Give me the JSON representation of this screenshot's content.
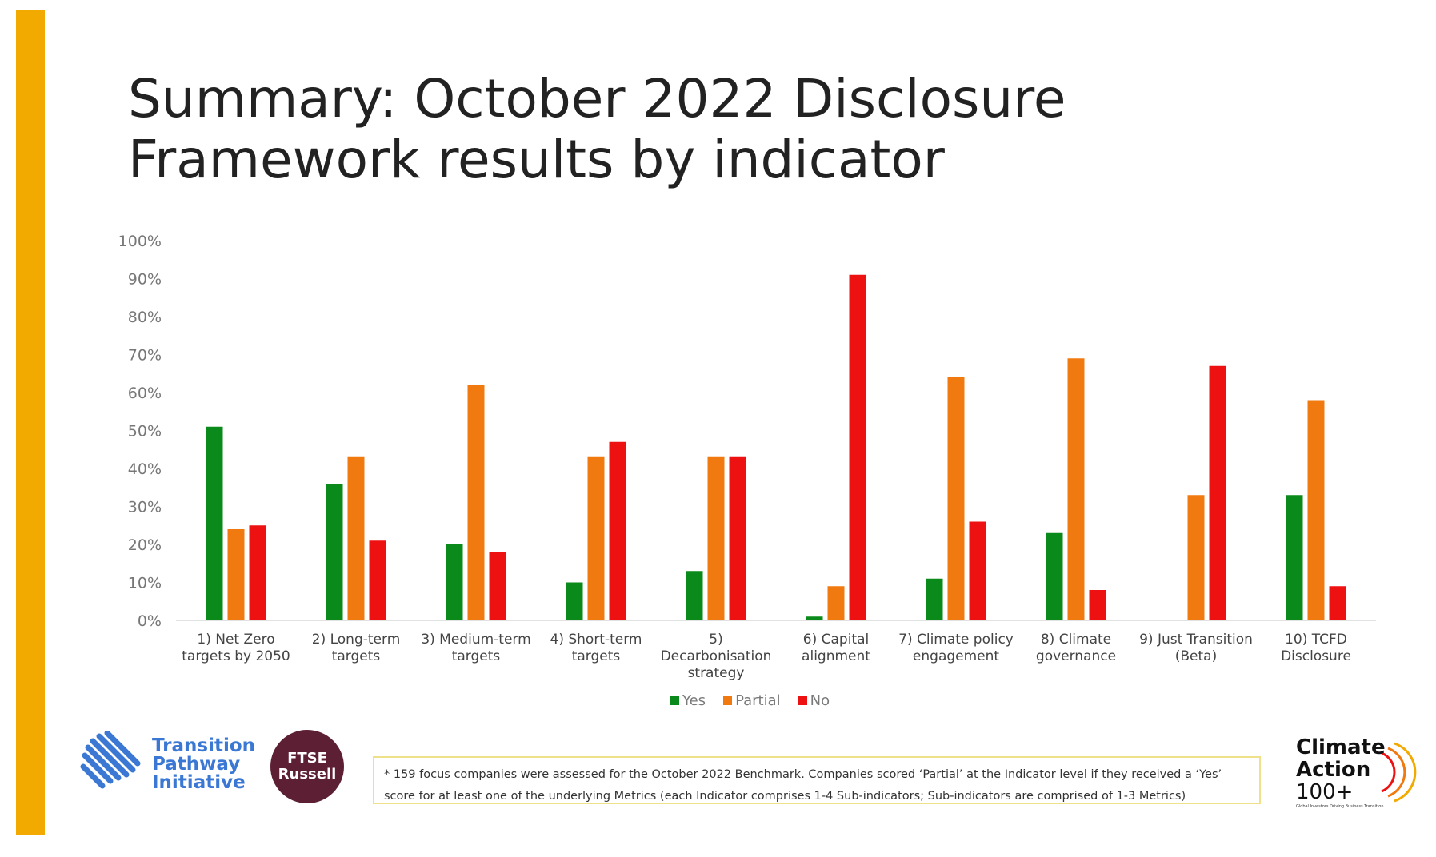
{
  "title_lines": [
    "Summary: October 2022 Disclosure",
    "Framework results by indicator"
  ],
  "colors": {
    "accent": "#F2A900",
    "yes": "#0A8A1A",
    "partial": "#F07A10",
    "no": "#EE1111",
    "axis_text": "#777777"
  },
  "chart_data": {
    "type": "bar",
    "categories": [
      [
        "1) Net Zero",
        "targets by 2050"
      ],
      [
        "2) Long-term",
        "targets"
      ],
      [
        "3) Medium-term",
        "targets"
      ],
      [
        "4) Short-term",
        "targets"
      ],
      [
        "5)",
        "Decarbonisation",
        "strategy"
      ],
      [
        "6) Capital",
        "alignment"
      ],
      [
        "7) Climate policy",
        "engagement"
      ],
      [
        "8) Climate",
        "governance"
      ],
      [
        "9) Just Transition",
        "(Beta)"
      ],
      [
        "10) TCFD",
        "Disclosure"
      ]
    ],
    "series": [
      {
        "name": "Yes",
        "color": "#0A8A1A",
        "values": [
          51,
          36,
          20,
          10,
          13,
          1,
          11,
          23,
          0,
          33
        ]
      },
      {
        "name": "Partial",
        "color": "#F07A10",
        "values": [
          24,
          43,
          62,
          43,
          43,
          9,
          64,
          69,
          33,
          58
        ]
      },
      {
        "name": "No",
        "color": "#EE1111",
        "values": [
          25,
          21,
          18,
          47,
          43,
          91,
          26,
          8,
          67,
          9
        ]
      }
    ],
    "yticks": [
      "0%",
      "10%",
      "20%",
      "30%",
      "40%",
      "50%",
      "60%",
      "70%",
      "80%",
      "90%",
      "100%"
    ],
    "ylim": [
      0,
      100
    ],
    "grid": false,
    "legend_position": "bottom"
  },
  "legend": {
    "yes": "Yes",
    "partial": "Partial",
    "no": "No"
  },
  "footnote_lines": [
    "* 159 focus companies were assessed for the October 2022 Benchmark. Companies scored ‘Partial’ at the Indicator level if they received a ‘Yes’",
    "score for at least one of the underlying Metrics (each Indicator comprises 1-4 Sub-indicators; Sub-indicators are comprised of 1-3 Metrics)"
  ],
  "logos": {
    "tpi_lines": [
      "Transition",
      "Pathway",
      "Initiative"
    ],
    "ftse_lines": [
      "FTSE",
      "Russell"
    ],
    "ca_lines": [
      "Climate",
      "Action",
      "100+"
    ],
    "ca_tagline": "Global Investors Driving Business Transition"
  }
}
